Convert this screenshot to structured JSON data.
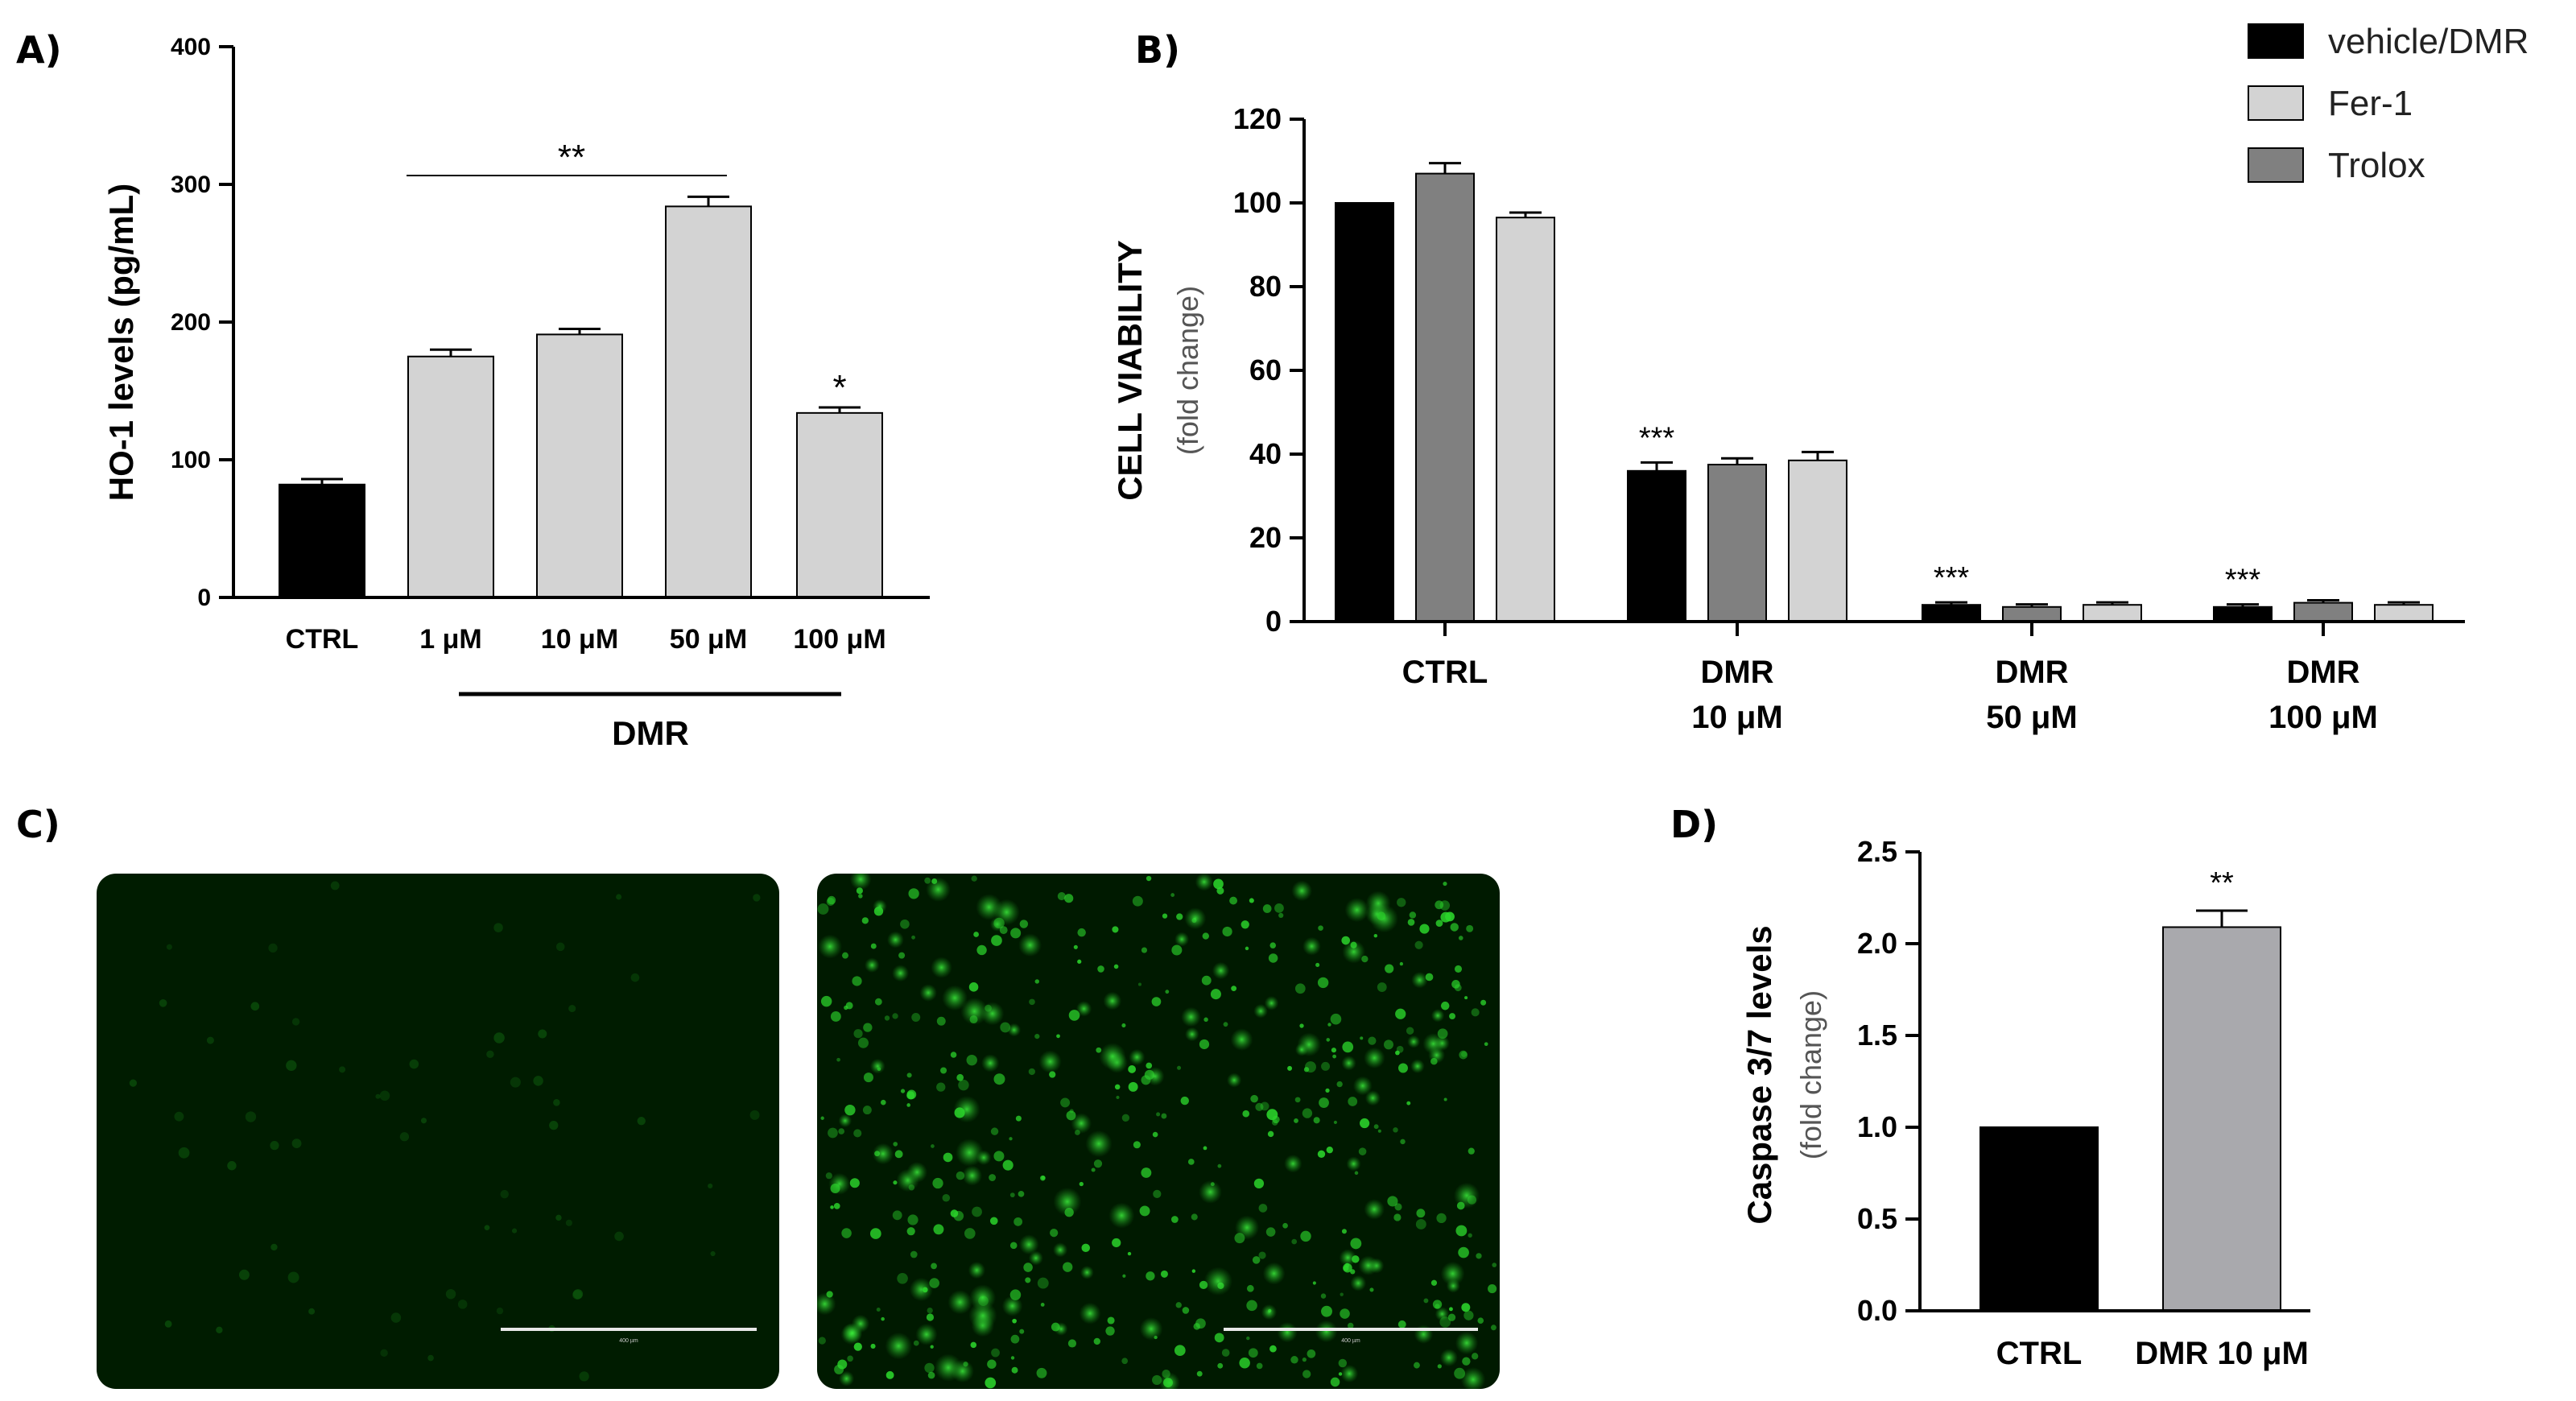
{
  "panels": {
    "A": "A)",
    "B": "B)",
    "C": "C)",
    "D": "D)"
  },
  "chart_data": [
    {
      "id": "A",
      "type": "bar",
      "categories": [
        "CTRL",
        "1 μM",
        "10 μM",
        "50 μM",
        "100 μM"
      ],
      "values": [
        82,
        175,
        191,
        284,
        134
      ],
      "errors": [
        4,
        5,
        4,
        7,
        4
      ],
      "colors": [
        "#000000",
        "#d3d3d3",
        "#d3d3d3",
        "#d3d3d3",
        "#d3d3d3"
      ],
      "ylabel": "HO-1 levels (pg/mL)",
      "ylim": [
        0,
        400
      ],
      "yticks": [
        "0",
        "100",
        "200",
        "300",
        "400"
      ],
      "group_label": "DMR",
      "bar_annotations": {
        "4": "*"
      },
      "bracket_annotation": "**"
    },
    {
      "id": "B",
      "type": "bar",
      "categories": [
        [
          "CTRL"
        ],
        [
          "DMR",
          "10 μM"
        ],
        [
          "DMR",
          "50 μM"
        ],
        [
          "DMR",
          "100 μM"
        ]
      ],
      "series": [
        {
          "name": "vehicle/DMR",
          "color": "#000000",
          "values": [
            100,
            36,
            4,
            3.5
          ],
          "errors": [
            0,
            2,
            0.6,
            0.6
          ]
        },
        {
          "name": "Trolox",
          "color": "#808080",
          "values": [
            107,
            37.5,
            3.5,
            4.5
          ],
          "errors": [
            2.5,
            1.5,
            0.6,
            0.6
          ]
        },
        {
          "name": "Fer-1",
          "color": "#d3d3d3",
          "values": [
            96.5,
            38.5,
            4,
            4
          ],
          "errors": [
            1.2,
            2,
            0.6,
            0.6
          ]
        }
      ],
      "legend": [
        {
          "name": "vehicle/DMR",
          "color": "#000000"
        },
        {
          "name": "Fer-1",
          "color": "#d3d3d3"
        },
        {
          "name": "Trolox",
          "color": "#808080"
        }
      ],
      "legend_position": "top-right",
      "ylabel": "CELL VIABILITY",
      "ylabel_sub": "(fold change)",
      "ylim": [
        0,
        120
      ],
      "yticks": [
        "0",
        "20",
        "40",
        "60",
        "80",
        "100",
        "120"
      ],
      "group_annotations": {
        "1": "***",
        "2": "***",
        "3": "***"
      }
    },
    {
      "id": "D",
      "type": "bar",
      "categories": [
        "CTRL",
        "DMR 10 μM"
      ],
      "values": [
        1.0,
        2.09
      ],
      "errors": [
        0,
        0.09
      ],
      "colors": [
        "#000000",
        "#a9a9ad"
      ],
      "ylabel": "Caspase 3/7 levels",
      "ylabel_sub": "(fold change)",
      "ylim": [
        0,
        2.5
      ],
      "yticks": [
        "0.0",
        "0.5",
        "1.0",
        "1.5",
        "2.0",
        "2.5"
      ],
      "bar_annotations": {
        "1": "**"
      }
    }
  ],
  "micrographs": {
    "left_scale_label": "400 µm",
    "right_scale_label": "400 µm",
    "background": "#001a00",
    "signal_color": "#2bd52b"
  }
}
